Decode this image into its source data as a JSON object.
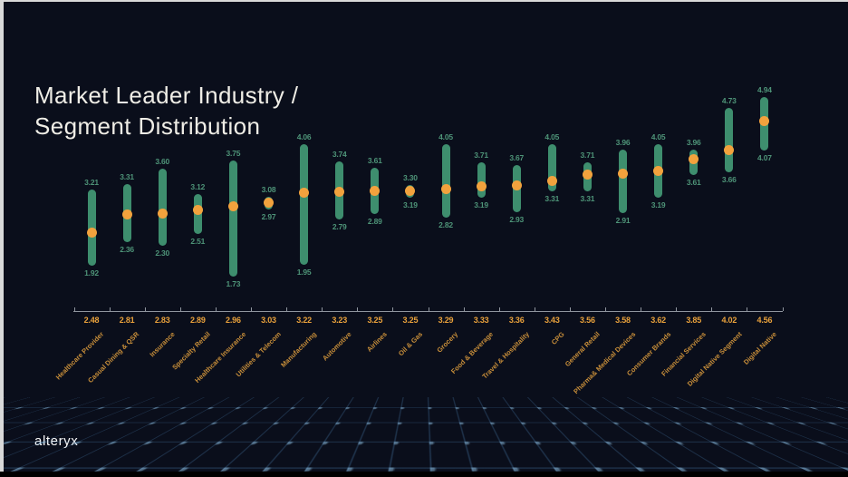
{
  "slide": {
    "title_line1": "Market Leader Industry /",
    "title_line2": "Segment Distribution",
    "brand": "alteryx"
  },
  "colors": {
    "background": "#0A0E1B",
    "frame": "#D9D9D9",
    "title": "#EFEDE6",
    "bar_green": "#3E8E6E",
    "dot_orange": "#F2A23D",
    "range_label_teal": "#4E9478",
    "mean_label_orange": "#E9A13B",
    "category_label_orange": "#C98F3A",
    "axis_line": "#8F959E",
    "floor_grid_blue": "#487EB0"
  },
  "chart_data": {
    "type": "range-dot",
    "title": "Market Leader Industry / Segment Distribution",
    "xlabel": "",
    "ylabel": "",
    "ylim": [
      1.0,
      5.1
    ],
    "grid": false,
    "legend": "none",
    "marks": {
      "bar": "min-max range (green rounded bar, labels above/below in teal)",
      "dot": "mean value (orange dot, value shown in orange on axis row)"
    },
    "points": [
      {
        "label": "Healthcare Provider",
        "mean": 2.48,
        "min": 1.92,
        "max": 3.21
      },
      {
        "label": "Casual Dining & QSR",
        "mean": 2.81,
        "min": 2.36,
        "max": 3.31
      },
      {
        "label": "Insurance",
        "mean": 2.83,
        "min": 2.3,
        "max": 3.6
      },
      {
        "label": "Specialty Retail",
        "mean": 2.89,
        "min": 2.51,
        "max": 3.12
      },
      {
        "label": "Healthcare Insurance",
        "mean": 2.96,
        "min": 1.73,
        "max": 3.75
      },
      {
        "label": "Utilities & Telecom",
        "mean": 3.03,
        "min": 2.97,
        "max": 3.08
      },
      {
        "label": "Manufacturing",
        "mean": 3.22,
        "min": 1.95,
        "max": 4.06
      },
      {
        "label": "Automotive",
        "mean": 3.23,
        "min": 2.79,
        "max": 3.74
      },
      {
        "label": "Airlines",
        "mean": 3.25,
        "min": 2.89,
        "max": 3.61
      },
      {
        "label": "Oil & Gas",
        "mean": 3.25,
        "min": 3.19,
        "max": 3.3
      },
      {
        "label": "Grocery",
        "mean": 3.29,
        "min": 2.82,
        "max": 4.05
      },
      {
        "label": "Food & Beverage",
        "mean": 3.33,
        "min": 3.19,
        "max": 3.71
      },
      {
        "label": "Travel & Hospitality",
        "mean": 3.36,
        "min": 2.93,
        "max": 3.67
      },
      {
        "label": "CPG",
        "mean": 3.43,
        "min": 3.31,
        "max": 4.05
      },
      {
        "label": "General Retail",
        "mean": 3.56,
        "min": 3.31,
        "max": 3.71
      },
      {
        "label": "Pharma& Medical Devices",
        "mean": 3.58,
        "min": 2.91,
        "max": 3.96
      },
      {
        "label": "Consumer Brands",
        "mean": 3.62,
        "min": 3.19,
        "max": 4.05
      },
      {
        "label": "Financial Services",
        "mean": 3.85,
        "min": 3.61,
        "max": 3.96
      },
      {
        "label": "Digital Native Segment",
        "mean": 4.02,
        "min": 3.66,
        "max": 4.73
      },
      {
        "label": "Digital Native",
        "mean": 4.56,
        "min": 4.07,
        "max": 4.94
      }
    ]
  }
}
